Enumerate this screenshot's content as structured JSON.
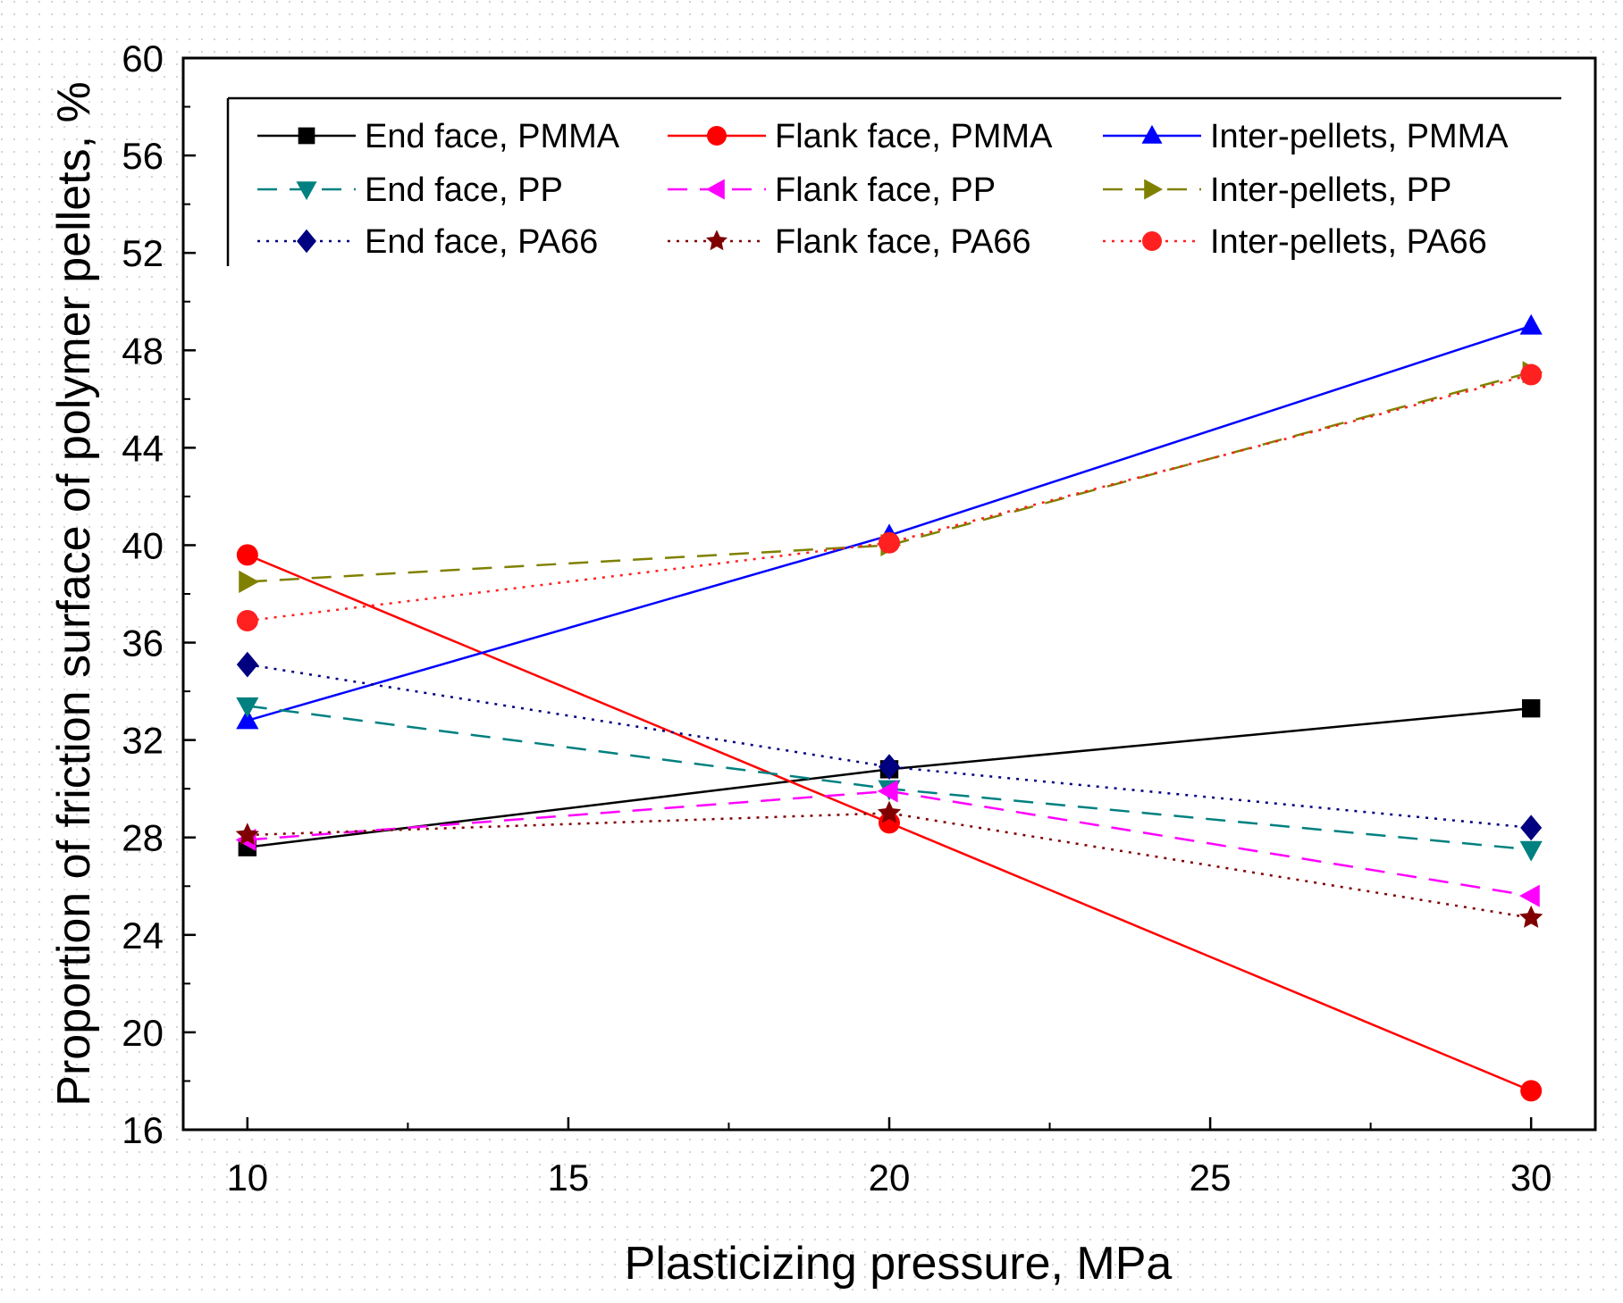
{
  "chart_data": {
    "type": "line",
    "title": "",
    "xlabel": "Plasticizing pressure, MPa",
    "ylabel": "Proportion of friction surface of polymer pellets, %",
    "xlim": [
      9,
      31
    ],
    "ylim": [
      16,
      60
    ],
    "xticks": [
      10,
      15,
      20,
      25,
      30
    ],
    "yticks": [
      16,
      20,
      24,
      28,
      32,
      36,
      40,
      44,
      48,
      52,
      56,
      60
    ],
    "x": [
      10,
      20,
      30
    ],
    "legend_position": "top",
    "series": [
      {
        "name": "End face, PMMA",
        "values": [
          27.6,
          30.8,
          33.3
        ],
        "color": "#000000",
        "dash": "solid",
        "marker": "square"
      },
      {
        "name": "Flank face, PMMA",
        "values": [
          39.6,
          28.6,
          17.6
        ],
        "color": "#ff0000",
        "dash": "solid",
        "marker": "circle"
      },
      {
        "name": "Inter-pellets, PMMA",
        "values": [
          32.8,
          40.4,
          49.0
        ],
        "color": "#0000ff",
        "dash": "solid",
        "marker": "triangle-up"
      },
      {
        "name": "End face, PP",
        "values": [
          33.4,
          30.0,
          27.5
        ],
        "color": "#008080",
        "dash": "dashed",
        "marker": "triangle-down"
      },
      {
        "name": "Flank face, PP",
        "values": [
          27.9,
          29.9,
          25.6
        ],
        "color": "#ff00ff",
        "dash": "dashed",
        "marker": "triangle-left"
      },
      {
        "name": "Inter-pellets, PP",
        "values": [
          38.5,
          40.0,
          47.1
        ],
        "color": "#808000",
        "dash": "dashed",
        "marker": "triangle-right"
      },
      {
        "name": "End face, PA66",
        "values": [
          35.1,
          30.9,
          28.4
        ],
        "color": "#000080",
        "dash": "dotted",
        "marker": "diamond"
      },
      {
        "name": "Flank face, PA66",
        "values": [
          28.1,
          29.0,
          24.7
        ],
        "color": "#800000",
        "dash": "dotted",
        "marker": "star"
      },
      {
        "name": "Inter-pellets, PA66",
        "values": [
          36.9,
          40.1,
          47.0
        ],
        "color": "#ff2020",
        "dash": "dotted",
        "marker": "circle"
      }
    ]
  }
}
